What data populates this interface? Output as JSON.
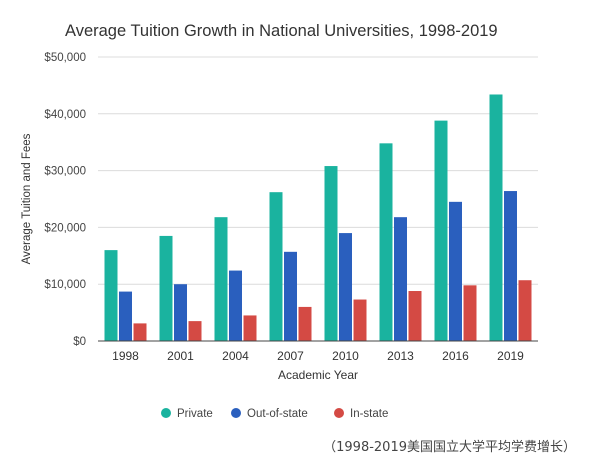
{
  "chart_data": {
    "type": "bar",
    "title": "Average Tuition Growth in National Universities, 1998-2019",
    "xlabel": "Academic Year",
    "ylabel": "Average Tuition and Fees",
    "categories": [
      "1998",
      "2001",
      "2004",
      "2007",
      "2010",
      "2013",
      "2016",
      "2019"
    ],
    "ylim": [
      0,
      50000
    ],
    "yticks": [
      "$0",
      "$10,000",
      "$20,000",
      "$30,000",
      "$40,000",
      "$50,000"
    ],
    "ytick_values": [
      0,
      10000,
      20000,
      30000,
      40000,
      50000
    ],
    "grid": true,
    "legend_position": "bottom",
    "series": [
      {
        "name": "Private",
        "color": "#1ab39f",
        "values": [
          16000,
          18500,
          21800,
          26200,
          30800,
          34800,
          38800,
          43400
        ]
      },
      {
        "name": "Out-of-state",
        "color": "#2a5fbe",
        "values": [
          8700,
          10000,
          12400,
          15700,
          19000,
          21800,
          24500,
          26400
        ]
      },
      {
        "name": "In-state",
        "color": "#d44a44",
        "values": [
          3100,
          3500,
          4500,
          6000,
          7300,
          8800,
          9800,
          10700
        ]
      }
    ]
  },
  "caption": "（1998-2019美国国立大学平均学费增长）"
}
